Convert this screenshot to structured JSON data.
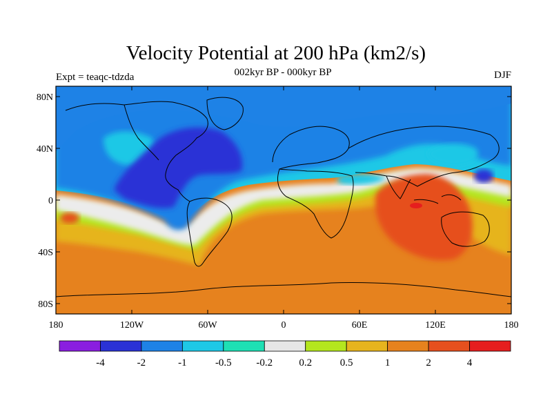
{
  "chart_data": {
    "type": "contour-map",
    "title": "Velocity Potential at 200 hPa (km2/s)",
    "subtitle": "002kyr BP - 000kyr BP",
    "left_label": "Expt = teaqc-tdzda",
    "right_label": "DJF",
    "x_ticks": [
      "180",
      "120W",
      "60W",
      "0",
      "60E",
      "120E",
      "180"
    ],
    "y_ticks": [
      "80N",
      "40N",
      "0",
      "40S",
      "80S"
    ],
    "xlim": [
      -180,
      180
    ],
    "ylim": [
      -90,
      90
    ],
    "colorbar": {
      "levels": [
        "-4",
        "-2",
        "-1",
        "-0.5",
        "-0.2",
        "0.2",
        "0.5",
        "1",
        "2",
        "4"
      ],
      "colors": [
        "#8a1ee0",
        "#2a32d6",
        "#1e82e6",
        "#1ec8e6",
        "#1ee0b4",
        "#e6e6e6",
        "#b4e61e",
        "#e6b41e",
        "#e6821e",
        "#e6501e",
        "#e61e1e"
      ]
    },
    "regions": [
      {
        "name": "north-atlantic-minimum",
        "sign": "negative",
        "peak": "-2"
      },
      {
        "name": "maritime-continent-maximum",
        "sign": "positive",
        "peak": "4"
      },
      {
        "name": "southern-hemisphere",
        "sign": "positive",
        "level": "2"
      },
      {
        "name": "northern-hemisphere",
        "sign": "negative",
        "level": "-1"
      }
    ]
  }
}
